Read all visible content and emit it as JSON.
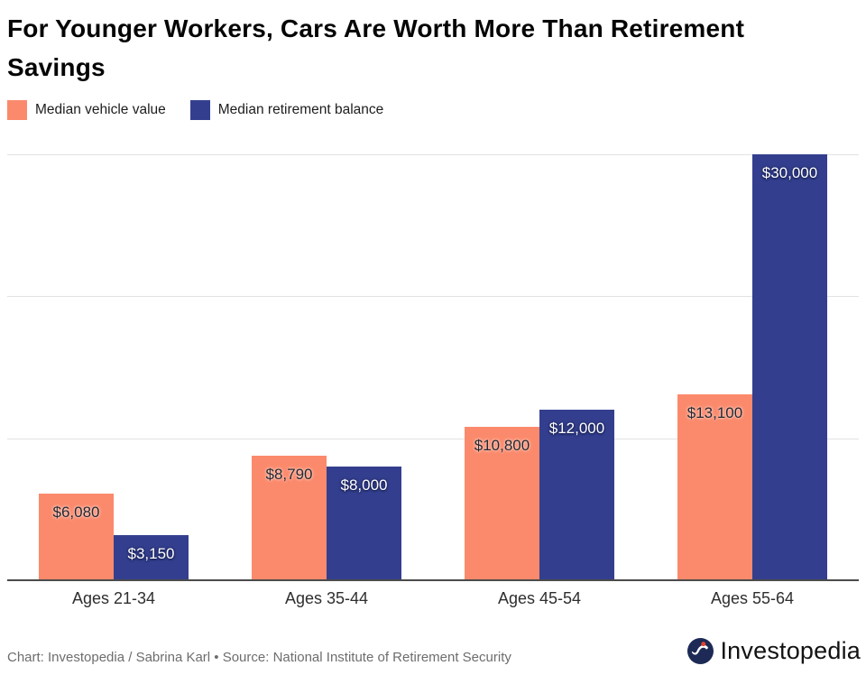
{
  "chart_data": {
    "type": "bar",
    "title": "For Younger Workers, Cars Are Worth More Than Retirement Savings",
    "categories": [
      "Ages 21-34",
      "Ages 35-44",
      "Ages 45-54",
      "Ages 55-64"
    ],
    "series": [
      {
        "name": "Median vehicle value",
        "color": "#fb8a6c",
        "label_color": "dark",
        "values": [
          6080,
          8790,
          10800,
          13100
        ],
        "value_labels": [
          "$6,080",
          "$8,790",
          "$10,800",
          "$13,100"
        ]
      },
      {
        "name": "Median retirement balance",
        "color": "#333f8e",
        "label_color": "light",
        "values": [
          3150,
          8000,
          12000,
          30000
        ],
        "value_labels": [
          "$3,150",
          "$8,000",
          "$12,000",
          "$30,000"
        ]
      }
    ],
    "xlabel": "",
    "ylabel": "",
    "ylim": [
      0,
      30000
    ],
    "gridline_interval": 10000,
    "grid": true,
    "legend_position": "top-left"
  },
  "footer": {
    "credit": "Chart: Investopedia / Sabrina Karl • Source: National Institute of Retirement Security",
    "logo_text": "Investopedia"
  },
  "colors": {
    "gridline": "#e2e2e2",
    "axis_line": "#4b4b4b",
    "axis_label": "#2e2e2e",
    "credit_text": "#6d6d6d",
    "logo_circle": "#1c2a55",
    "logo_mark": "#ffffff",
    "logo_dot": "#e1432e"
  }
}
